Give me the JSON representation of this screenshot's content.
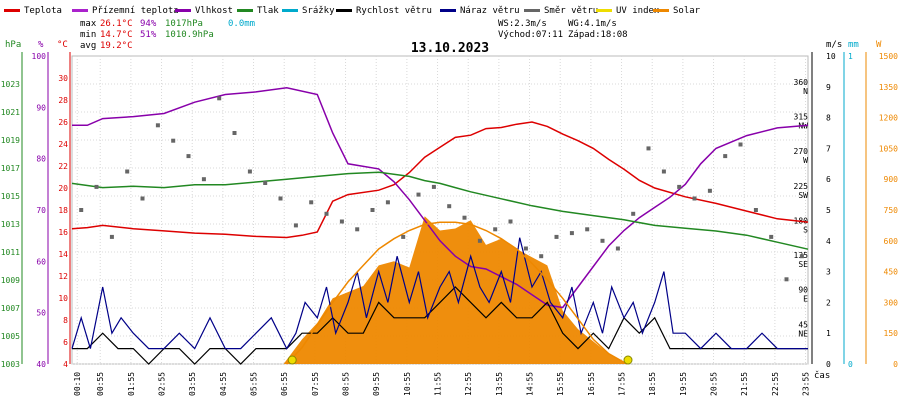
{
  "legend": [
    {
      "label": "Teplota",
      "color": "#dd0000"
    },
    {
      "label": "Přízemní teplota",
      "color": "#aa22cc"
    },
    {
      "label": "Vlhkost",
      "color": "#8800aa"
    },
    {
      "label": "Tlak",
      "color": "#228822"
    },
    {
      "label": "Srážky",
      "color": "#00aacc"
    },
    {
      "label": "Rychlost větru",
      "color": "#000000"
    },
    {
      "label": "Náraz větru",
      "color": "#000088"
    },
    {
      "label": "Směr větru",
      "color": "#666666"
    },
    {
      "label": "UV index",
      "color": "#eedd00"
    },
    {
      "label": "Solar",
      "color": "#ee8800"
    }
  ],
  "stats": {
    "max_label": "max",
    "max_temp": "26.1°C",
    "max_hum": "94%",
    "max_press": "1017hPa",
    "max_rain": "0.0mm",
    "min_label": "min",
    "min_temp": "14.7°C",
    "min_hum": "51%",
    "min_press": "1010.9hPa",
    "avg_label": "avg",
    "avg_temp": "19.2°C",
    "ws": "WS:2.3m/s",
    "wg": "WG:4.1m/s",
    "sunrise": "Východ:07:11",
    "sunset": "Západ:18:08"
  },
  "chart_data": {
    "type": "line",
    "title": "13.10.2023",
    "xlabel": "čas",
    "axes": {
      "pressure": {
        "unit": "hPa",
        "ticks": [
          "1003",
          "1005",
          "1007",
          "1009",
          "1011",
          "1013",
          "1015",
          "1017",
          "1019",
          "1021",
          "1023"
        ],
        "range": [
          1003,
          1025
        ]
      },
      "humidity": {
        "unit": "%",
        "ticks": [
          "40",
          "50",
          "60",
          "70",
          "80",
          "90",
          "100"
        ],
        "range": [
          40,
          100
        ]
      },
      "temperature": {
        "unit": "°C",
        "ticks": [
          "4",
          "6",
          "8",
          "10",
          "12",
          "14",
          "16",
          "18",
          "20",
          "22",
          "24",
          "26",
          "28",
          "30"
        ],
        "range": [
          4,
          32
        ]
      },
      "wind": {
        "unit": "m/s",
        "ticks": [
          "0",
          "1",
          "2",
          "3",
          "4",
          "5",
          "6",
          "7",
          "8",
          "9",
          "10"
        ],
        "range": [
          0,
          10
        ]
      },
      "rain": {
        "unit": "mm",
        "ticks": [
          "0",
          "1"
        ],
        "range": [
          0,
          1
        ]
      },
      "solar": {
        "unit": "W",
        "ticks": [
          "0",
          "150",
          "300",
          "450",
          "600",
          "750",
          "900",
          "1050",
          "1200",
          "1350",
          "1500"
        ],
        "range": [
          0,
          1500
        ]
      },
      "direction": {
        "ticks": [
          "45 NE",
          "90 E",
          "135 SE",
          "180 S",
          "225 SW",
          "270 W",
          "315 NW",
          "360 N"
        ]
      }
    },
    "x_ticks": [
      "00:10",
      "00:55",
      "01:55",
      "02:55",
      "03:55",
      "04:55",
      "05:55",
      "06:55",
      "07:55",
      "08:55",
      "09:55",
      "10:55",
      "11:55",
      "12:55",
      "13:55",
      "14:55",
      "15:55",
      "16:55",
      "17:55",
      "18:55",
      "19:55",
      "20:55",
      "21:55",
      "22:55",
      "23:55"
    ],
    "x_hours": [
      0.17,
      0.92,
      1.92,
      2.92,
      3.92,
      4.92,
      5.92,
      6.92,
      7.92,
      8.92,
      9.92,
      10.92,
      11.92,
      12.92,
      13.92,
      14.92,
      15.92,
      16.92,
      17.92,
      18.92,
      19.92,
      20.92,
      21.92,
      22.92,
      23.92
    ],
    "series": [
      {
        "name": "Teplota",
        "axis": "temperature",
        "color": "#dd0000",
        "x": [
          0,
          0.5,
          1,
          2,
          3,
          4,
          5,
          6,
          7,
          7.5,
          8,
          8.5,
          9,
          10,
          10.5,
          11,
          11.5,
          12,
          12.5,
          13,
          13.5,
          14,
          14.5,
          15,
          15.5,
          16,
          16.5,
          17,
          17.5,
          18,
          18.5,
          19,
          20,
          21,
          22,
          23,
          24
        ],
        "values": [
          16.3,
          16.4,
          16.6,
          16.3,
          16.1,
          15.9,
          15.8,
          15.6,
          15.5,
          15.7,
          16.0,
          18.8,
          19.4,
          19.8,
          20.3,
          21.4,
          22.8,
          23.7,
          24.6,
          24.8,
          25.4,
          25.5,
          25.8,
          26.0,
          25.6,
          24.9,
          24.3,
          23.6,
          22.6,
          21.7,
          20.7,
          20.0,
          19.2,
          18.6,
          17.9,
          17.2,
          16.9
        ]
      },
      {
        "name": "Vlhkost",
        "axis": "humidity",
        "color": "#8800aa",
        "x": [
          0,
          0.5,
          1,
          2,
          3,
          4,
          5,
          6,
          7,
          8,
          8.5,
          9,
          10,
          10.5,
          11,
          11.5,
          12,
          12.5,
          13,
          13.5,
          14,
          14.5,
          15,
          15.5,
          16,
          16.5,
          17,
          17.5,
          18,
          18.5,
          19,
          19.5,
          20,
          20.5,
          21,
          22,
          23,
          24
        ],
        "values": [
          86.5,
          86.5,
          87.8,
          88.2,
          88.8,
          91.0,
          92.5,
          93.0,
          93.8,
          92.5,
          85.0,
          79.0,
          78.0,
          75.5,
          72.0,
          68.0,
          64.0,
          61.0,
          59.0,
          58.5,
          57.0,
          55.5,
          53.5,
          51.5,
          51.0,
          55.0,
          59.0,
          63.0,
          66.0,
          68.5,
          70.5,
          72.5,
          75.0,
          79.0,
          82.0,
          84.5,
          86.0,
          86.5
        ]
      },
      {
        "name": "Tlak",
        "axis": "pressure",
        "color": "#228822",
        "x": [
          0,
          1,
          2,
          3,
          4,
          5,
          6,
          7,
          8,
          9,
          10,
          11,
          11.5,
          12,
          12.5,
          13,
          14,
          15,
          16,
          17,
          18,
          19,
          20,
          21,
          22,
          23,
          24
        ],
        "values": [
          1015.9,
          1015.6,
          1015.7,
          1015.6,
          1015.8,
          1015.8,
          1016.0,
          1016.2,
          1016.4,
          1016.6,
          1016.7,
          1016.4,
          1016.1,
          1015.9,
          1015.6,
          1015.3,
          1014.8,
          1014.3,
          1013.9,
          1013.6,
          1013.3,
          1012.9,
          1012.7,
          1012.5,
          1012.2,
          1011.7,
          1011.2
        ]
      },
      {
        "name": "Rychlost větru",
        "axis": "wind",
        "color": "#000000",
        "x": [
          0,
          0.5,
          1,
          1.5,
          2,
          2.5,
          3,
          3.5,
          4,
          4.5,
          5,
          5.5,
          6,
          6.5,
          7,
          7.5,
          8,
          8.5,
          9,
          9.5,
          10,
          10.5,
          11,
          11.5,
          12,
          12.5,
          13,
          13.5,
          14,
          14.5,
          15,
          15.5,
          16,
          16.5,
          17,
          17.5,
          18,
          18.5,
          19,
          19.5,
          20,
          20.5,
          21,
          21.5,
          22,
          22.5,
          23,
          23.5,
          24
        ],
        "values": [
          0.5,
          0.5,
          1.0,
          0.5,
          0.5,
          0.0,
          0.5,
          0.5,
          0.0,
          0.5,
          0.5,
          0.0,
          0.5,
          0.5,
          0.5,
          1.0,
          1.0,
          1.5,
          1.0,
          1.0,
          2.0,
          1.5,
          1.5,
          1.5,
          2.0,
          2.5,
          2.0,
          1.5,
          2.0,
          1.5,
          1.5,
          2.0,
          1.0,
          0.5,
          1.0,
          0.5,
          1.5,
          1.0,
          1.5,
          0.5,
          0.5,
          0.5,
          0.5,
          0.5,
          0.5,
          0.5,
          0.5,
          0.5,
          0.5
        ]
      },
      {
        "name": "Náraz větru",
        "axis": "wind",
        "color": "#000088",
        "x": [
          0,
          0.3,
          0.6,
          1,
          1.3,
          1.6,
          2,
          2.5,
          3,
          3.5,
          4,
          4.5,
          5,
          5.5,
          6,
          6.5,
          7,
          7.3,
          7.6,
          8,
          8.3,
          8.6,
          9,
          9.3,
          9.6,
          10,
          10.3,
          10.6,
          11,
          11.3,
          11.6,
          12,
          12.3,
          12.6,
          13,
          13.3,
          13.6,
          14,
          14.3,
          14.6,
          15,
          15.3,
          15.6,
          16,
          16.3,
          16.6,
          17,
          17.3,
          17.6,
          18,
          18.3,
          18.6,
          19,
          19.3,
          19.6,
          20,
          20.5,
          21,
          21.5,
          22,
          22.5,
          23,
          23.5,
          24
        ],
        "values": [
          0.5,
          1.5,
          0.5,
          2.5,
          1.0,
          1.5,
          1.0,
          0.5,
          0.5,
          1.0,
          0.5,
          1.5,
          0.5,
          0.5,
          1.0,
          1.5,
          0.5,
          1.0,
          2.0,
          1.5,
          2.5,
          1.0,
          2.0,
          3.0,
          1.5,
          3.0,
          2.0,
          3.5,
          2.0,
          3.0,
          1.5,
          2.5,
          3.0,
          2.0,
          3.5,
          2.5,
          2.0,
          3.0,
          2.0,
          4.1,
          2.5,
          3.0,
          2.0,
          1.5,
          2.5,
          1.0,
          2.0,
          1.0,
          2.5,
          1.5,
          2.0,
          1.0,
          2.0,
          3.0,
          1.0,
          1.0,
          0.5,
          1.0,
          0.5,
          0.5,
          1.0,
          0.5,
          0.5,
          0.5
        ]
      },
      {
        "name": "Solar",
        "axis": "solar",
        "color": "#ee8800",
        "x": [
          6.9,
          7.5,
          8,
          8.5,
          9,
          9.5,
          10,
          10.5,
          11,
          11.5,
          12,
          12.5,
          13,
          13.5,
          14,
          14.5,
          15,
          15.5,
          16,
          16.5,
          17,
          17.5,
          18.1
        ],
        "values": [
          0,
          120,
          200,
          320,
          350,
          380,
          480,
          500,
          470,
          720,
          650,
          660,
          700,
          580,
          610,
          560,
          520,
          480,
          260,
          170,
          110,
          50,
          0
        ]
      },
      {
        "name": "Solar clear-sky",
        "axis": "solar",
        "color": "#ee8800",
        "x": [
          7.0,
          7.5,
          8,
          8.5,
          9,
          9.5,
          10,
          10.5,
          11,
          11.5,
          12,
          12.5,
          13,
          13.5,
          14,
          14.5,
          15,
          15.5,
          16,
          16.5,
          17,
          17.5,
          18.1
        ],
        "values": [
          0,
          80,
          190,
          300,
          400,
          480,
          560,
          610,
          650,
          680,
          690,
          690,
          680,
          650,
          610,
          560,
          490,
          410,
          320,
          220,
          120,
          50,
          0
        ]
      }
    ],
    "direction_points": {
      "x": [
        0.3,
        0.8,
        1.3,
        1.8,
        2.3,
        2.8,
        3.3,
        3.8,
        4.3,
        4.8,
        5.3,
        5.8,
        6.3,
        6.8,
        7.3,
        7.8,
        8.3,
        8.8,
        9.3,
        9.8,
        10.3,
        10.8,
        11.3,
        11.8,
        12.3,
        12.8,
        13.3,
        13.8,
        14.3,
        14.8,
        15.3,
        15.8,
        16.3,
        16.8,
        17.3,
        17.8,
        18.3,
        18.8,
        19.3,
        19.8,
        20.3,
        20.8,
        21.3,
        21.8,
        22.3,
        22.8,
        23.3,
        23.8
      ],
      "values": [
        200,
        230,
        165,
        250,
        215,
        310,
        290,
        270,
        240,
        345,
        300,
        250,
        235,
        215,
        180,
        210,
        195,
        185,
        175,
        200,
        210,
        165,
        220,
        230,
        205,
        190,
        160,
        175,
        185,
        150,
        140,
        165,
        170,
        175,
        160,
        150,
        195,
        280,
        250,
        230,
        215,
        225,
        270,
        285,
        200,
        165,
        110,
        140
      ]
    }
  }
}
